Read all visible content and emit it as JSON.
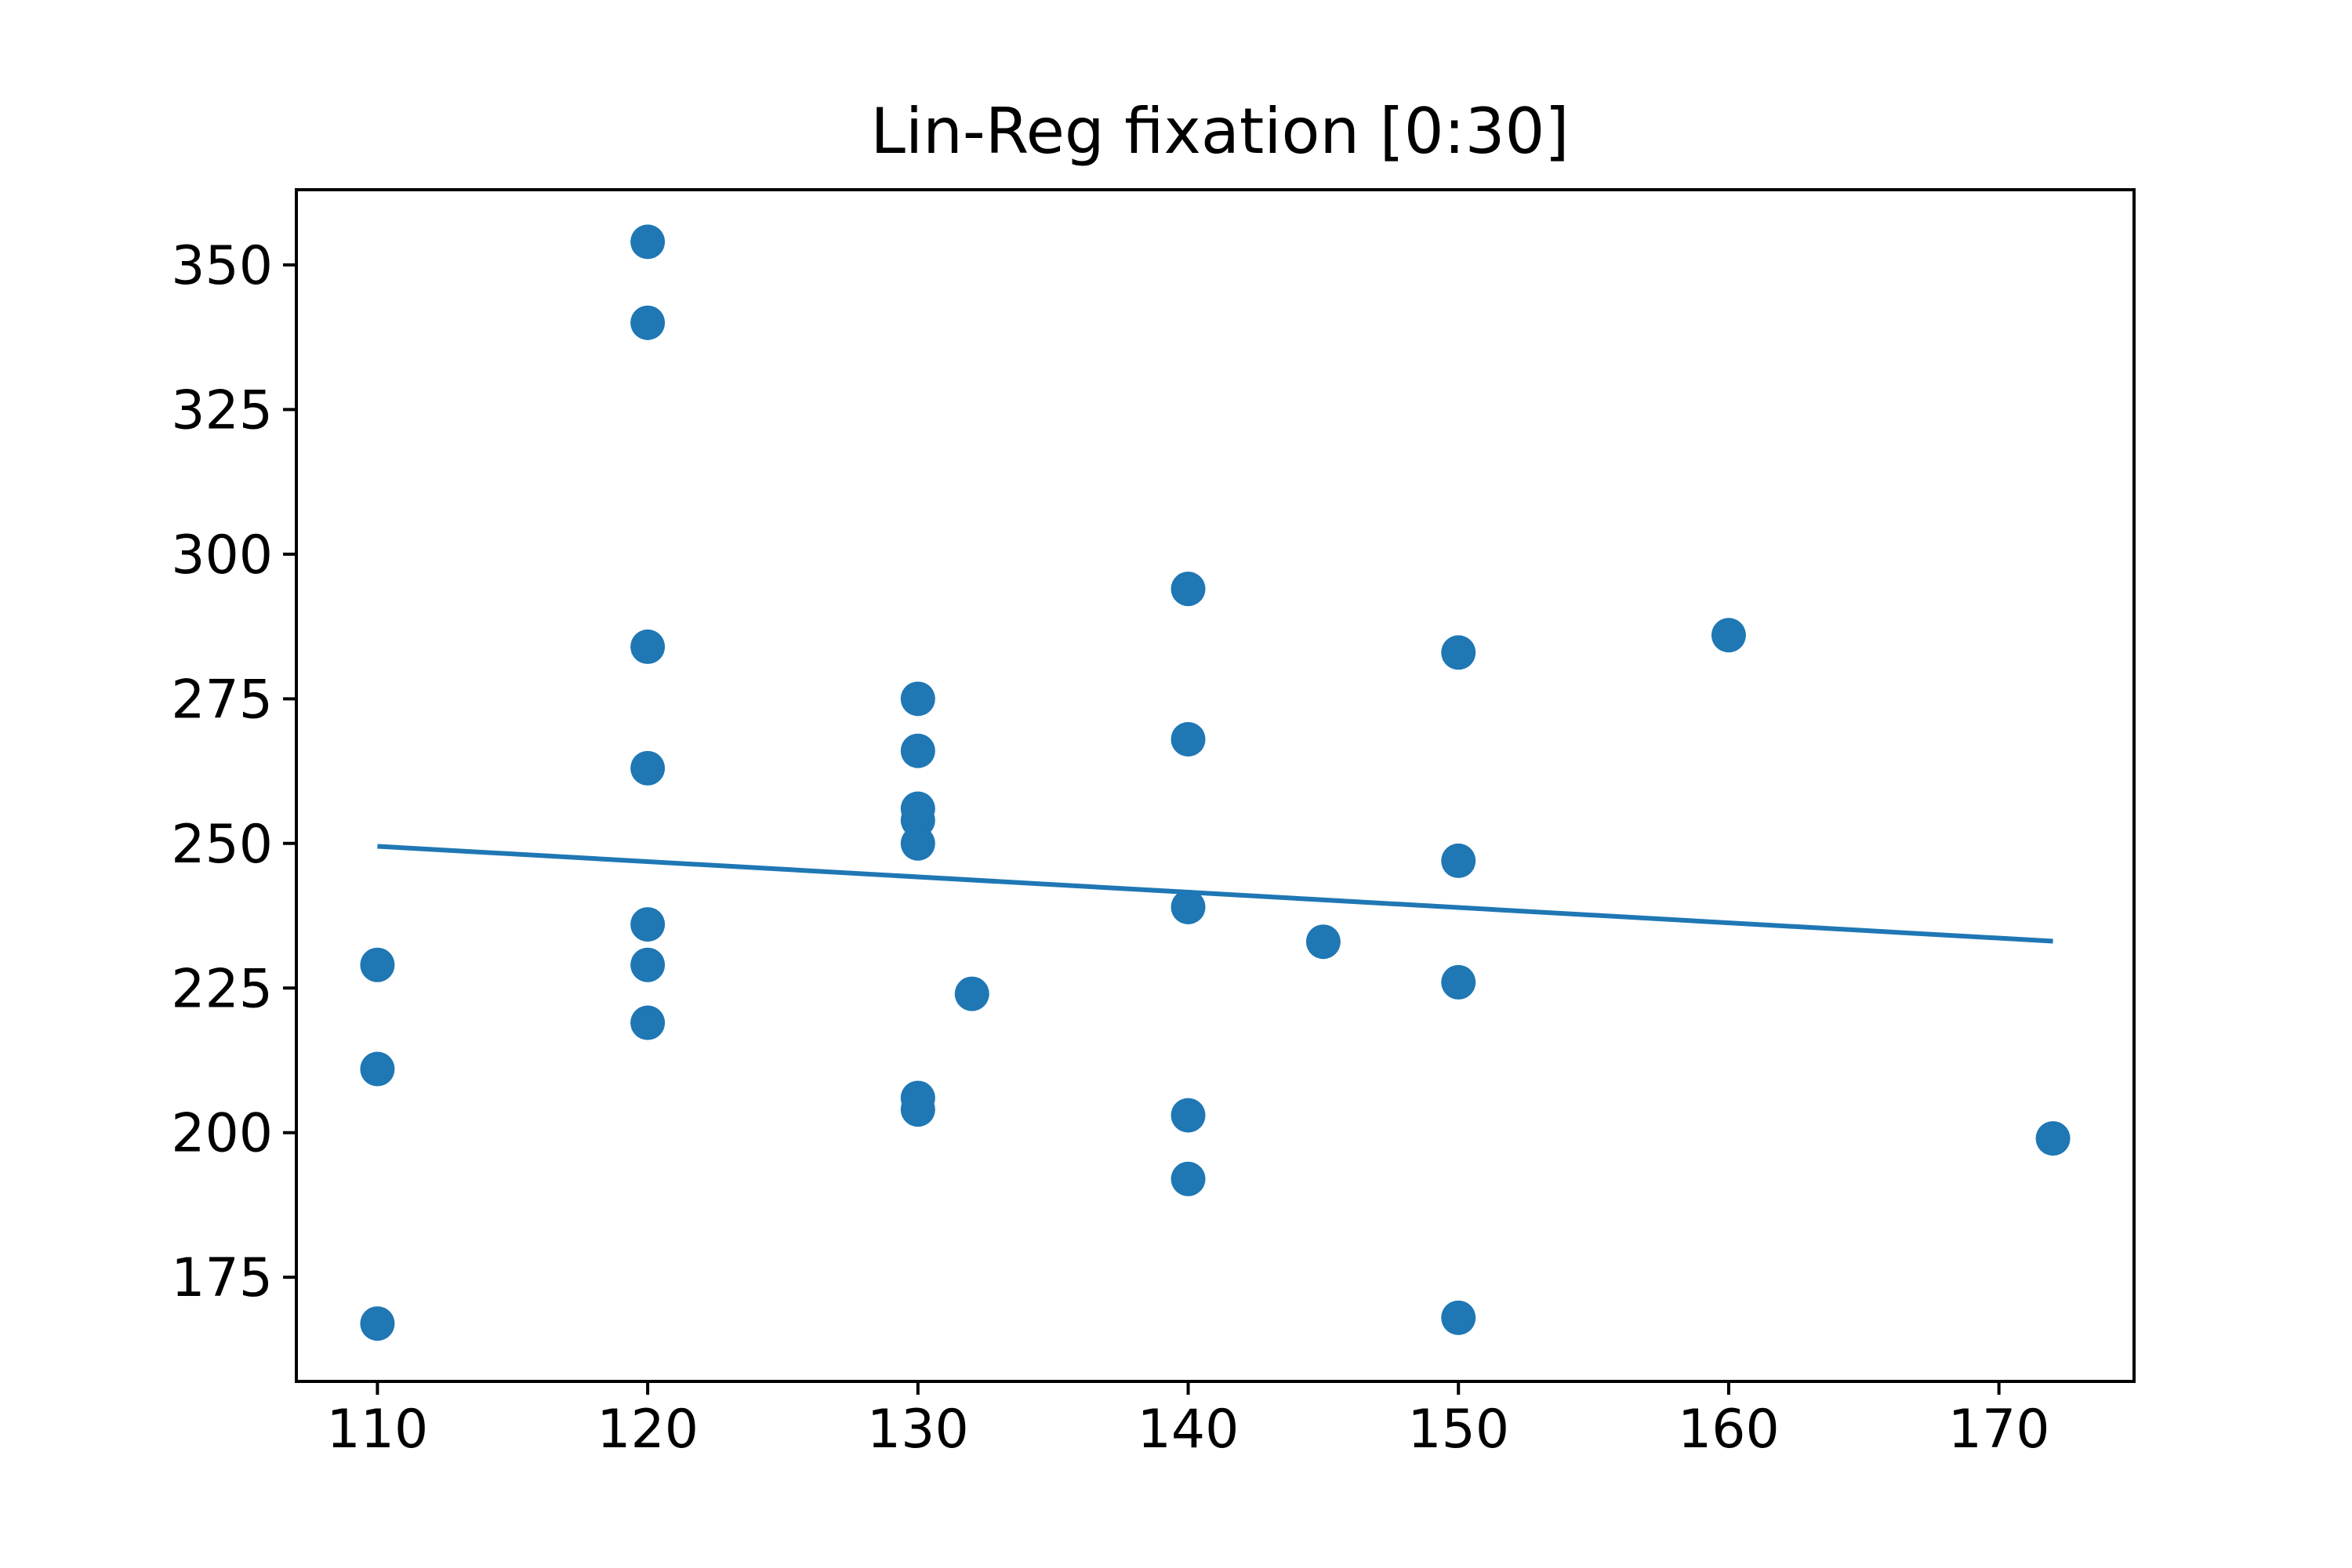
{
  "chart_data": {
    "type": "scatter",
    "title": "Lin-Reg fixation [0:30]",
    "xlabel": "",
    "ylabel": "",
    "xlim": [
      107,
      175
    ],
    "ylim": [
      157,
      363
    ],
    "x_ticks": [
      110,
      120,
      130,
      140,
      150,
      160,
      170
    ],
    "y_ticks": [
      175,
      200,
      225,
      250,
      275,
      300,
      325,
      350
    ],
    "grid": false,
    "color": "#1f77b4",
    "points": [
      {
        "x": 110,
        "y": 229
      },
      {
        "x": 110,
        "y": 211
      },
      {
        "x": 110,
        "y": 167
      },
      {
        "x": 120,
        "y": 354
      },
      {
        "x": 120,
        "y": 340
      },
      {
        "x": 120,
        "y": 284
      },
      {
        "x": 120,
        "y": 263
      },
      {
        "x": 120,
        "y": 236
      },
      {
        "x": 120,
        "y": 229
      },
      {
        "x": 120,
        "y": 219
      },
      {
        "x": 130,
        "y": 275
      },
      {
        "x": 130,
        "y": 266
      },
      {
        "x": 130,
        "y": 256
      },
      {
        "x": 130,
        "y": 254
      },
      {
        "x": 130,
        "y": 250
      },
      {
        "x": 130,
        "y": 206
      },
      {
        "x": 130,
        "y": 204
      },
      {
        "x": 132,
        "y": 224
      },
      {
        "x": 140,
        "y": 294
      },
      {
        "x": 140,
        "y": 268
      },
      {
        "x": 140,
        "y": 239
      },
      {
        "x": 140,
        "y": 203
      },
      {
        "x": 140,
        "y": 192
      },
      {
        "x": 145,
        "y": 233
      },
      {
        "x": 150,
        "y": 283
      },
      {
        "x": 150,
        "y": 247
      },
      {
        "x": 150,
        "y": 226
      },
      {
        "x": 150,
        "y": 168
      },
      {
        "x": 160,
        "y": 286
      },
      {
        "x": 172,
        "y": 199
      }
    ],
    "regression_line": {
      "x": [
        110,
        172
      ],
      "y": [
        249.5,
        233.1
      ]
    }
  }
}
